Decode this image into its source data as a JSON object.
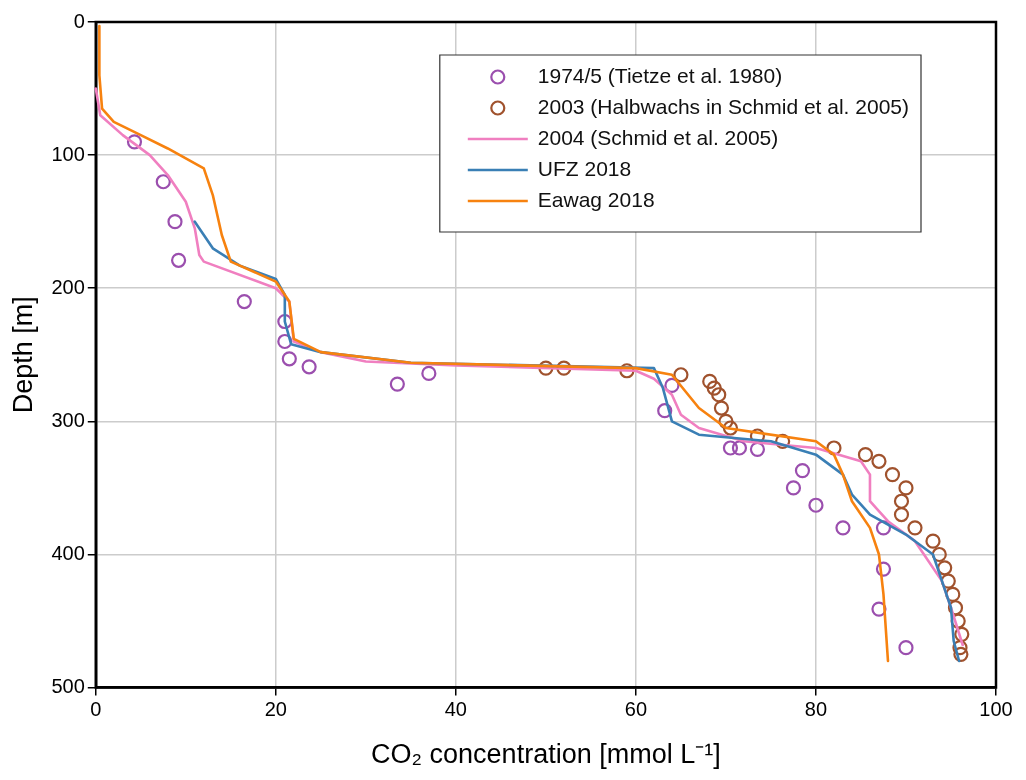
{
  "chart_data": {
    "type": "line",
    "xlabel": "CO₂ concentration [mmol L⁻¹]",
    "ylabel": "Depth [m]",
    "xlim": [
      0,
      100
    ],
    "xticks": [
      0,
      20,
      40,
      60,
      80,
      100
    ],
    "ylim": [
      500,
      0
    ],
    "yticks": [
      0,
      100,
      200,
      300,
      400,
      500
    ],
    "grid": true,
    "legend": "top right",
    "series": [
      {
        "name": "1974/5 (Tietze et al. 1980)",
        "type": "scatter",
        "marker": "circle",
        "color": "#9b4fae",
        "x": [
          4.3,
          7.5,
          8.8,
          9.2,
          16.5,
          21,
          21,
          21.5,
          23.7,
          33.5,
          37,
          63.2,
          64,
          70.5,
          71.5,
          73.5,
          77.5,
          78.5,
          80,
          83,
          87.5,
          87.5,
          87,
          90
        ],
        "values": [
          90,
          120,
          150,
          179,
          210,
          225,
          240,
          253,
          259,
          272,
          264,
          292,
          273,
          320,
          320,
          321,
          350,
          337,
          363,
          380,
          380,
          411,
          441,
          470
        ]
      },
      {
        "name": "2003 (Halbwachs in Schmid et al. 2005)",
        "type": "scatter",
        "marker": "circle",
        "color": "#a0522d",
        "x": [
          50,
          52,
          59,
          65,
          68.2,
          68.7,
          69.2,
          69.5,
          70,
          70.5,
          73.5,
          76.3,
          82,
          85.5,
          87,
          88.5,
          90,
          89.5,
          89.5,
          91,
          93,
          93.7,
          94.3,
          94.7,
          95.2,
          95.5,
          95.8,
          96.2,
          96,
          96.1
        ],
        "values": [
          260,
          260,
          262,
          265,
          270,
          275,
          280,
          290,
          300,
          305,
          311,
          315,
          320,
          325,
          330,
          340,
          350,
          360,
          370,
          380,
          390,
          400,
          410,
          420,
          430,
          440,
          450,
          460,
          470,
          475
        ]
      },
      {
        "name": "2004 (Schmid et al. 2005)",
        "marker": "none",
        "color": "#f07fc0",
        "x": [
          0,
          0.5,
          3,
          6,
          8,
          10,
          11,
          11.5,
          12,
          20,
          21.5,
          22,
          25,
          30,
          40,
          60,
          62,
          64,
          65,
          67,
          72,
          80,
          85,
          86,
          86,
          88,
          91,
          92,
          94,
          95,
          96.3
        ],
        "values": [
          50,
          70,
          85,
          100,
          115,
          135,
          155,
          175,
          180,
          200,
          210,
          240,
          248,
          255,
          258,
          262,
          268,
          280,
          295,
          305,
          315,
          320,
          330,
          340,
          360,
          375,
          390,
          400,
          420,
          440,
          468
        ]
      },
      {
        "name": "UFZ 2018",
        "marker": "none",
        "color": "#3a7fb5",
        "x": [
          11,
          13,
          16,
          20,
          21,
          21,
          21.7,
          25,
          35,
          62,
          63,
          64,
          67,
          75,
          80,
          83,
          84,
          86,
          90,
          93,
          94,
          95,
          95.3,
          95.9
        ],
        "values": [
          150,
          170,
          183,
          193,
          205,
          225,
          242,
          248,
          256,
          260,
          275,
          300,
          310,
          315,
          325,
          340,
          355,
          370,
          385,
          400,
          420,
          440,
          465,
          480
        ]
      },
      {
        "name": "Eawag 2018",
        "marker": "none",
        "color": "#f7820f",
        "x": [
          0.4,
          0.4,
          0.7,
          2,
          5,
          8,
          12,
          13,
          14,
          15,
          20,
          21.5,
          22,
          25,
          35,
          60,
          64,
          67,
          70,
          80,
          82,
          83,
          84,
          86,
          87,
          87.5,
          88
        ],
        "values": [
          3,
          40,
          65,
          75,
          85,
          95,
          110,
          130,
          160,
          180,
          195,
          210,
          238,
          248,
          256,
          260,
          265,
          290,
          305,
          315,
          325,
          340,
          360,
          380,
          400,
          430,
          480
        ]
      }
    ]
  }
}
